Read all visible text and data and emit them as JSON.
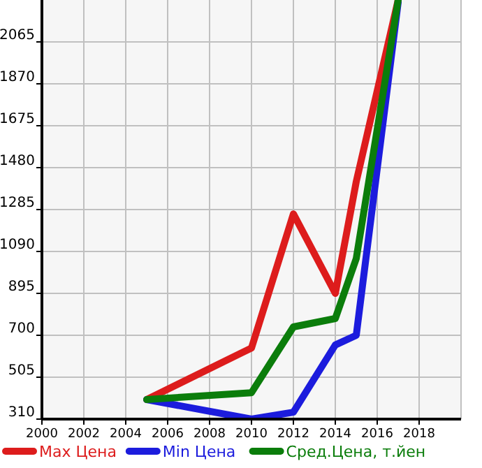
{
  "chart_data": {
    "type": "line",
    "x": [
      2005,
      2010,
      2012,
      2014,
      2015,
      2017
    ],
    "series": [
      {
        "name": "Max Цена",
        "color": "#dd1c1c",
        "values": [
          401,
          641,
          1265,
          895,
          1415,
          2260
        ]
      },
      {
        "name": "Min Цена",
        "color": "#1c1cdd",
        "values": [
          401,
          310,
          342,
          655,
          700,
          2250
        ]
      },
      {
        "name": "Сред.Цена, т.йен",
        "color": "#0b7d0b",
        "values": [
          401,
          433,
          739,
          778,
          1057,
          2260
        ]
      }
    ],
    "xlim": [
      2000,
      2020
    ],
    "xticks": [
      2000,
      2002,
      2004,
      2006,
      2008,
      2010,
      2012,
      2014,
      2016,
      2018
    ],
    "ylim": [
      310,
      2260
    ],
    "yticks": [
      310,
      505,
      700,
      895,
      1090,
      1285,
      1480,
      1675,
      1870,
      2065
    ],
    "grid": true,
    "legend": "bottom",
    "marker": "none",
    "line_style": "solid"
  }
}
